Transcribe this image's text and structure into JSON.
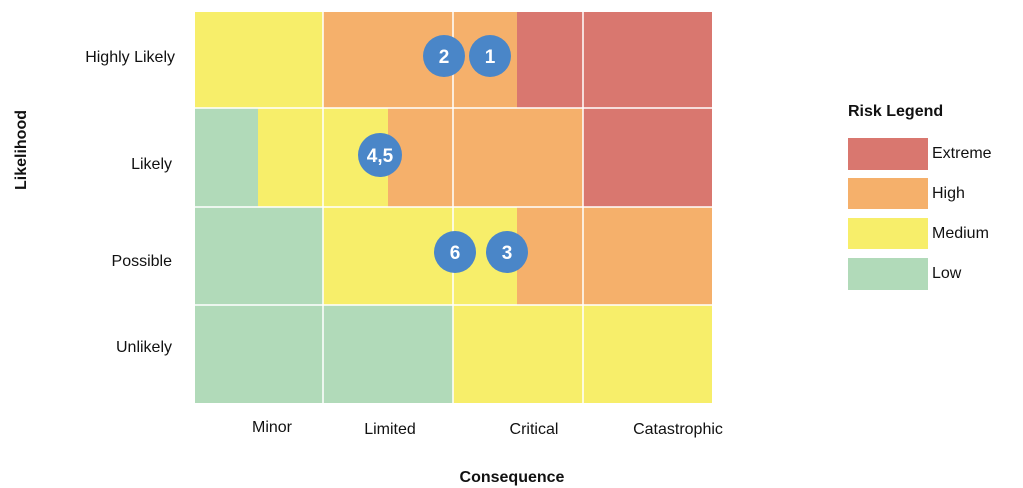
{
  "y_axis_label": "Likelihood",
  "x_axis_label": "Consequence",
  "rows": [
    "Highly Likely",
    "Likely",
    "Possible",
    "Unlikely"
  ],
  "columns": [
    "Minor",
    "Limited",
    "Critical",
    "Catastrophic"
  ],
  "markers": [
    "2",
    "1",
    "4,5",
    "6",
    "3"
  ],
  "legend": {
    "title": "Risk Legend",
    "items": [
      "Extreme",
      "High",
      "Medium",
      "Low"
    ]
  }
}
